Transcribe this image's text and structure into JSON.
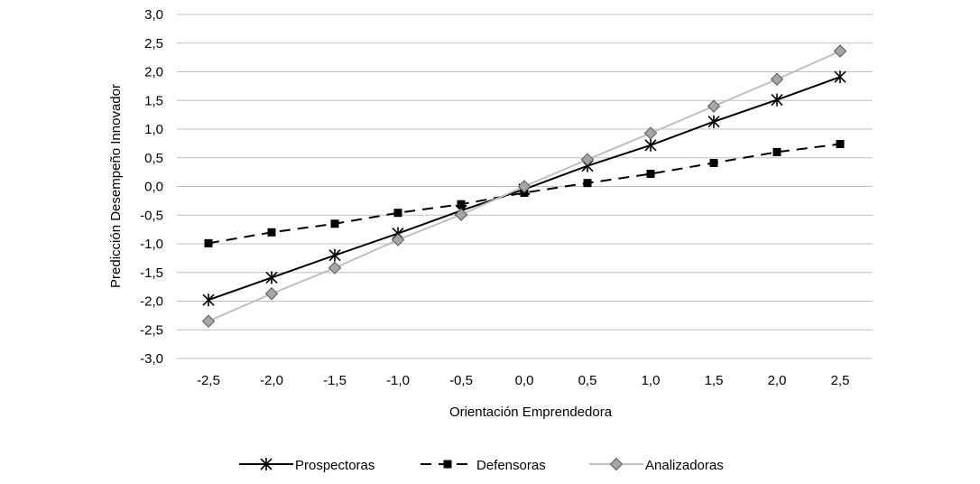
{
  "chart_data": {
    "type": "line",
    "title": "",
    "xlabel": "Orientación Emprendedora",
    "ylabel": "Predicción Desempeño Innovador",
    "categories": [
      "-2,5",
      "-2,0",
      "-1,5",
      "-1,0",
      "-0,5",
      "0,0",
      "0,5",
      "1,0",
      "1,5",
      "2,0",
      "2,5"
    ],
    "x": [
      -2.5,
      -2.0,
      -1.5,
      -1.0,
      -0.5,
      0.0,
      0.5,
      1.0,
      1.5,
      2.0,
      2.5
    ],
    "ylim": [
      -3.0,
      3.0
    ],
    "yticks": [
      "3,0",
      "2,5",
      "2,0",
      "1,5",
      "1,0",
      "0,5",
      "0,0",
      "-0,5",
      "-1,0",
      "-1,5",
      "-2,0",
      "-2,5",
      "-3,0"
    ],
    "ytick_values": [
      3.0,
      2.5,
      2.0,
      1.5,
      1.0,
      0.5,
      0.0,
      -0.5,
      -1.0,
      -1.5,
      -2.0,
      -2.5,
      -3.0
    ],
    "grid": true,
    "legend_position": "bottom",
    "series": [
      {
        "name": "Prospectoras",
        "marker": "asterisk",
        "line": "solid",
        "color": "#000000",
        "values": [
          -1.98,
          -1.59,
          -1.2,
          -0.82,
          -0.42,
          -0.05,
          0.36,
          0.72,
          1.13,
          1.51,
          1.91
        ]
      },
      {
        "name": "Defensoras",
        "marker": "square",
        "line": "dashed",
        "color": "#000000",
        "values": [
          -0.99,
          -0.8,
          -0.65,
          -0.46,
          -0.31,
          -0.11,
          0.06,
          0.22,
          0.41,
          0.6,
          0.74
        ]
      },
      {
        "name": "Analizadoras",
        "marker": "diamond",
        "line": "solid",
        "color": "#bfbfbf",
        "marker_fill": "#a6a6a6",
        "values": [
          -2.35,
          -1.87,
          -1.42,
          -0.93,
          -0.49,
          0.0,
          0.47,
          0.93,
          1.4,
          1.87,
          2.36
        ]
      }
    ]
  }
}
